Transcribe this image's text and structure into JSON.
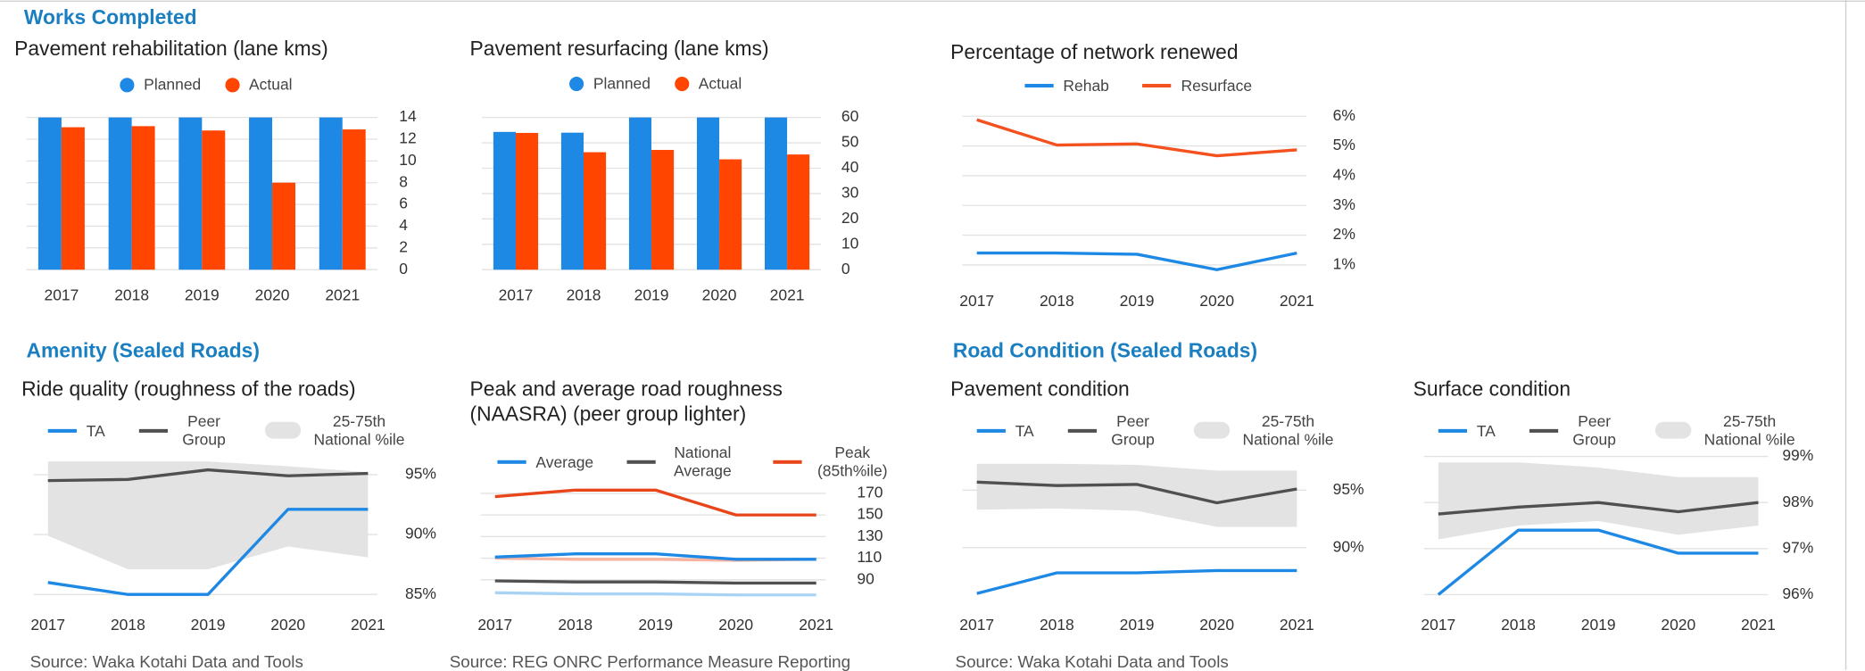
{
  "sections": [
    "Works Completed",
    "Amenity (Sealed Roads)",
    "Road Condition (Sealed Roads)"
  ],
  "chart_data": [
    {
      "type": "bar",
      "title": "Pavement rehabilitation (lane kms)",
      "categories": [
        "2017",
        "2018",
        "2019",
        "2020",
        "2021"
      ],
      "series": [
        {
          "name": "Planned",
          "color": "#1e88e5",
          "values": [
            14,
            14,
            14,
            14,
            14
          ]
        },
        {
          "name": "Actual",
          "color": "#ff4500",
          "values": [
            13.1,
            13.2,
            12.8,
            8.0,
            12.9
          ]
        }
      ],
      "ylim": [
        0,
        14
      ],
      "yticks": [
        0,
        2,
        4,
        6,
        8,
        10,
        12,
        14
      ],
      "grid": true
    },
    {
      "type": "bar",
      "title": "Pavement resurfacing (lane kms)",
      "categories": [
        "2017",
        "2018",
        "2019",
        "2020",
        "2021"
      ],
      "series": [
        {
          "name": "Planned",
          "color": "#1e88e5",
          "values": [
            54.3,
            54.0,
            60,
            60,
            60
          ]
        },
        {
          "name": "Actual",
          "color": "#ff4500",
          "values": [
            53.9,
            46.3,
            47.2,
            43.5,
            45.4
          ]
        }
      ],
      "ylim": [
        0,
        60
      ],
      "yticks": [
        0,
        10,
        20,
        30,
        40,
        50,
        60
      ],
      "grid": true
    },
    {
      "type": "line",
      "title": "Percentage of network renewed",
      "categories": [
        "2017",
        "2018",
        "2019",
        "2020",
        "2021"
      ],
      "series": [
        {
          "name": "Rehab",
          "color": "#1e88e5",
          "values": [
            1.4,
            1.4,
            1.36,
            0.84,
            1.4
          ]
        },
        {
          "name": "Resurface",
          "color": "#f4511e",
          "values": [
            5.88,
            5.03,
            5.07,
            4.67,
            4.87
          ]
        }
      ],
      "ylim": [
        0.6,
        6.2
      ],
      "yticks": [
        {
          "value": 1,
          "label": "1%"
        },
        {
          "value": 2,
          "label": "2%"
        },
        {
          "value": 3,
          "label": "3%"
        },
        {
          "value": 4,
          "label": "4%"
        },
        {
          "value": 5,
          "label": "5%"
        },
        {
          "value": 6,
          "label": "6%"
        }
      ],
      "grid": true
    },
    {
      "type": "line",
      "title": "Ride quality (roughness of the roads)",
      "categories": [
        "2017",
        "2018",
        "2019",
        "2020",
        "2021"
      ],
      "series": [
        {
          "name": "TA",
          "color": "#1e88e5",
          "values": [
            86.0,
            85.0,
            85.0,
            92.1,
            92.1
          ]
        },
        {
          "name": "Peer Group",
          "color": "#505050",
          "values": [
            94.5,
            94.6,
            95.4,
            94.9,
            95.1
          ]
        },
        {
          "name": "25-75th National %ile",
          "color": "#e3e3e3",
          "kind": "band",
          "lower": [
            89.9,
            87.1,
            87.1,
            89.0,
            88.1
          ],
          "upper": [
            96.1,
            96.1,
            96.1,
            95.7,
            95.2
          ]
        }
      ],
      "ylim": [
        84.5,
        96.5
      ],
      "yticks": [
        {
          "value": 85,
          "label": "85%"
        },
        {
          "value": 90,
          "label": "90%"
        },
        {
          "value": 95,
          "label": "95%"
        }
      ],
      "grid": true,
      "source": "Source: Waka Kotahi Data and Tools"
    },
    {
      "type": "line",
      "title": "Peak and average road roughness (NAASRA) (peer group lighter)",
      "categories": [
        "2017",
        "2018",
        "2019",
        "2020",
        "2021"
      ],
      "series": [
        {
          "name": "Average",
          "color": "#1e88e5",
          "values": [
            111,
            114,
            114,
            109,
            109
          ]
        },
        {
          "name": "National Average",
          "color": "#505050",
          "values": [
            89,
            88,
            88,
            87,
            87
          ]
        },
        {
          "name": "Peak (85th%ile)",
          "color": "#e8461a",
          "values": [
            167,
            173,
            173,
            150,
            150
          ]
        }
      ],
      "peer_series": [
        {
          "color": "#a9d3f5",
          "values": [
            78,
            77,
            77,
            76,
            76
          ]
        },
        {
          "color": "#f8b4a0",
          "values": [
            110,
            109,
            109,
            108,
            109
          ]
        }
      ],
      "ylim": [
        72,
        184
      ],
      "yticks": [
        90,
        110,
        130,
        150,
        170
      ],
      "grid": true,
      "source": "Source: REG ONRC Performance Measure Reporting"
    },
    {
      "type": "line",
      "title": "Pavement condition",
      "categories": [
        "2017",
        "2018",
        "2019",
        "2020",
        "2021"
      ],
      "series": [
        {
          "name": "TA",
          "color": "#1e88e5",
          "values": [
            86.0,
            87.8,
            87.8,
            88.0,
            88.0
          ]
        },
        {
          "name": "Peer Group",
          "color": "#505050",
          "values": [
            95.7,
            95.4,
            95.5,
            93.9,
            95.1
          ]
        },
        {
          "name": "25-75th National %ile",
          "color": "#e3e3e3",
          "kind": "band",
          "lower": [
            93.3,
            93.4,
            93.2,
            91.8,
            91.8
          ],
          "upper": [
            97.3,
            97.3,
            97.2,
            96.7,
            96.7
          ]
        }
      ],
      "ylim": [
        85.5,
        97.5
      ],
      "yticks": [
        {
          "value": 90,
          "label": "90%"
        },
        {
          "value": 95,
          "label": "95%"
        }
      ],
      "grid": true,
      "source": "Source: Waka Kotahi Data and Tools"
    },
    {
      "type": "line",
      "title": "Surface condition",
      "categories": [
        "2017",
        "2018",
        "2019",
        "2020",
        "2021"
      ],
      "series": [
        {
          "name": "TA",
          "color": "#1e88e5",
          "values": [
            96.0,
            97.4,
            97.4,
            96.9,
            96.9
          ]
        },
        {
          "name": "Peer Group",
          "color": "#505050",
          "values": [
            97.75,
            97.9,
            98.0,
            97.8,
            98.0
          ]
        },
        {
          "name": "25-75th National %ile",
          "color": "#e3e3e3",
          "kind": "band",
          "lower": [
            97.2,
            97.5,
            97.6,
            97.3,
            97.5
          ],
          "upper": [
            98.87,
            98.87,
            98.76,
            98.55,
            98.55
          ]
        }
      ],
      "ylim": [
        95.9,
        99.1
      ],
      "yticks": [
        {
          "value": 96,
          "label": "96%"
        },
        {
          "value": 97,
          "label": "97%"
        },
        {
          "value": 98,
          "label": "98%"
        },
        {
          "value": 99,
          "label": "99%"
        }
      ],
      "grid": true
    }
  ]
}
